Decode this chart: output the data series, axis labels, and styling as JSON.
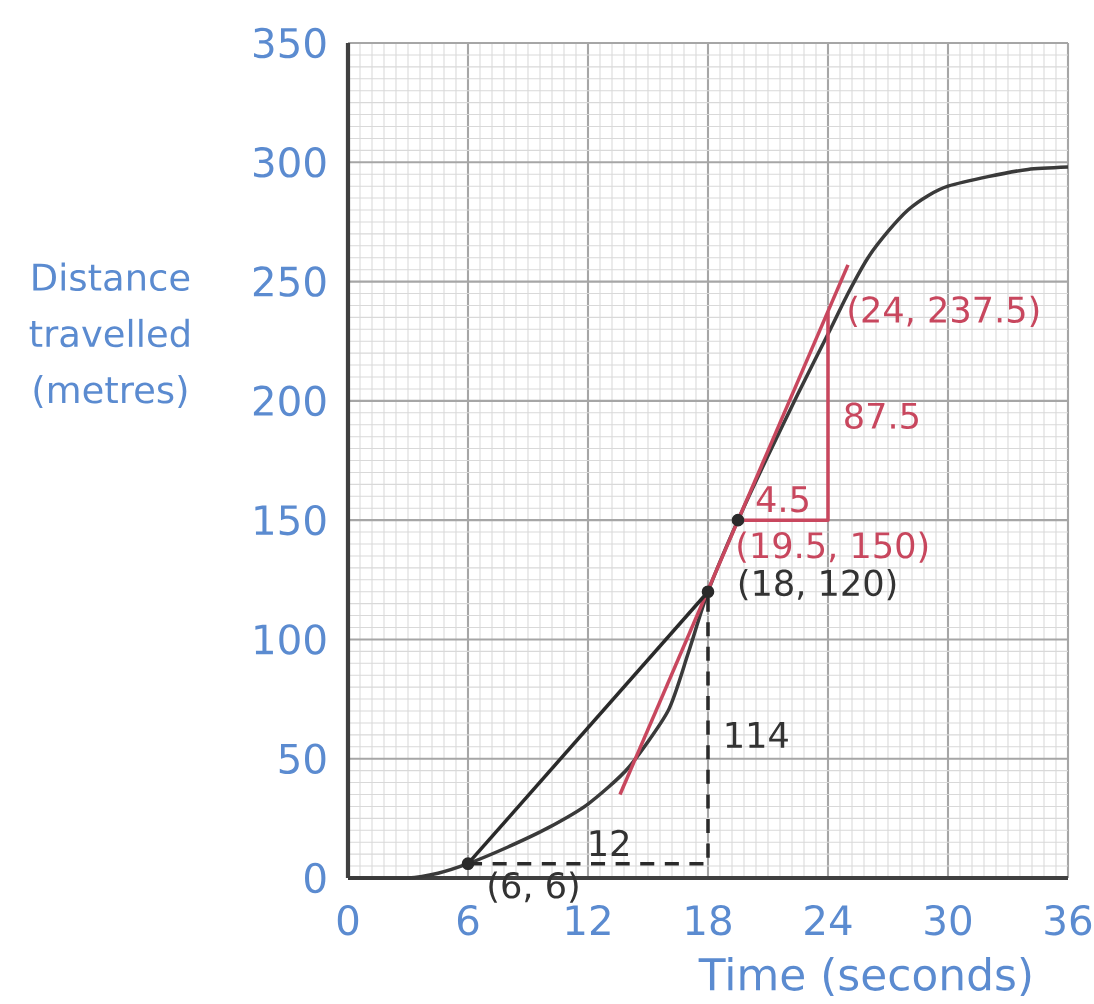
{
  "chart_data": {
    "type": "line",
    "xlabel": "Time (seconds)",
    "ylabel": "Distance travelled (metres)",
    "xlim": [
      0,
      36
    ],
    "ylim": [
      0,
      350
    ],
    "xticks": [
      0,
      6,
      12,
      18,
      24,
      30,
      36
    ],
    "yticks": [
      0,
      50,
      100,
      150,
      200,
      250,
      300,
      350
    ],
    "grid": true,
    "series": [
      {
        "color": "#3a3a3a",
        "x": [
          0,
          3,
          4.5,
          6,
          8,
          10,
          12,
          14,
          16,
          17,
          18,
          19.5,
          21,
          22.5,
          24,
          25,
          26,
          27,
          28,
          29,
          30,
          32,
          34,
          36
        ],
        "values": [
          0,
          0,
          2,
          6,
          13,
          21,
          31,
          46,
          70,
          94,
          120,
          150,
          177,
          203,
          228,
          245,
          260,
          271,
          280,
          286,
          290,
          294,
          297,
          298
        ]
      },
      {
        "type": "line",
        "color": "#c8475e",
        "x": [
          13.6,
          25
        ],
        "values": [
          35,
          257
        ]
      },
      {
        "type": "line",
        "color": "#c8475e",
        "x": [
          19.5,
          24,
          24
        ],
        "values": [
          150,
          150,
          237.5
        ]
      },
      {
        "type": "line",
        "color": "#2a2a2a",
        "x": [
          6,
          18
        ],
        "values": [
          6,
          120
        ]
      },
      {
        "type": "line",
        "color": "#2a2a2a",
        "line_style": "dashed",
        "x": [
          6,
          18,
          18
        ],
        "values": [
          6,
          6,
          120
        ]
      },
      {
        "type": "scatter",
        "color": "#2a2a2a",
        "x": [
          6,
          18,
          19.5
        ],
        "values": [
          6,
          120,
          150
        ]
      }
    ],
    "annotations": [
      {
        "text": "(6, 6)",
        "x": 6,
        "y": 6
      },
      {
        "text": "12",
        "x": 12,
        "y": 6
      },
      {
        "text": "114",
        "x": 18,
        "y": 60
      },
      {
        "text": "(18, 120)",
        "x": 18,
        "y": 120
      },
      {
        "text": "(19.5, 150)",
        "x": 19.5,
        "y": 150
      },
      {
        "text": "4.5",
        "x": 21.75,
        "y": 150
      },
      {
        "text": "87.5",
        "x": 24,
        "y": 193.75
      },
      {
        "text": "(24, 237.5)",
        "x": 24,
        "y": 237.5
      }
    ]
  }
}
